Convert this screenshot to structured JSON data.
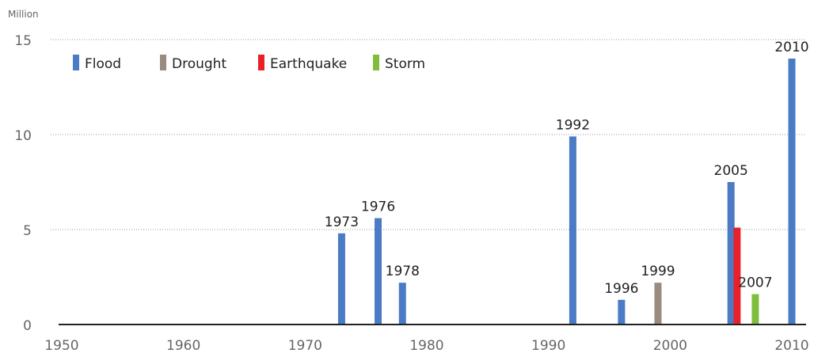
{
  "chart_data": {
    "type": "bar",
    "unit_label": "Million",
    "xlim": [
      1950,
      2010
    ],
    "ylim": [
      0,
      15
    ],
    "x_ticks": [
      1950,
      1960,
      1970,
      1980,
      1990,
      2000,
      2010
    ],
    "y_ticks": [
      0,
      5,
      10,
      15
    ],
    "grid": true,
    "legend_placement": "top-left",
    "colors": {
      "Flood": "#4a7bc4",
      "Drought": "#9b8a7e",
      "Earthquake": "#e8202a",
      "Storm": "#7ebe3c"
    },
    "series": [
      {
        "name": "Flood",
        "points": [
          {
            "x": 1973,
            "y": 4.8,
            "label": "1973"
          },
          {
            "x": 1976,
            "y": 5.6,
            "label": "1976"
          },
          {
            "x": 1978,
            "y": 2.2,
            "label": "1978"
          },
          {
            "x": 1992,
            "y": 9.9,
            "label": "1992"
          },
          {
            "x": 1996,
            "y": 1.3,
            "label": "1996"
          },
          {
            "x": 2005,
            "y": 7.5,
            "label": "2005"
          },
          {
            "x": 2010,
            "y": 14.0,
            "label": "2010"
          }
        ]
      },
      {
        "name": "Drought",
        "points": [
          {
            "x": 1999,
            "y": 2.2,
            "label": "1999"
          }
        ]
      },
      {
        "name": "Earthquake",
        "points": [
          {
            "x": 2005.5,
            "y": 5.1,
            "label": ""
          }
        ]
      },
      {
        "name": "Storm",
        "points": [
          {
            "x": 2007,
            "y": 1.6,
            "label": "2007"
          }
        ]
      }
    ]
  }
}
